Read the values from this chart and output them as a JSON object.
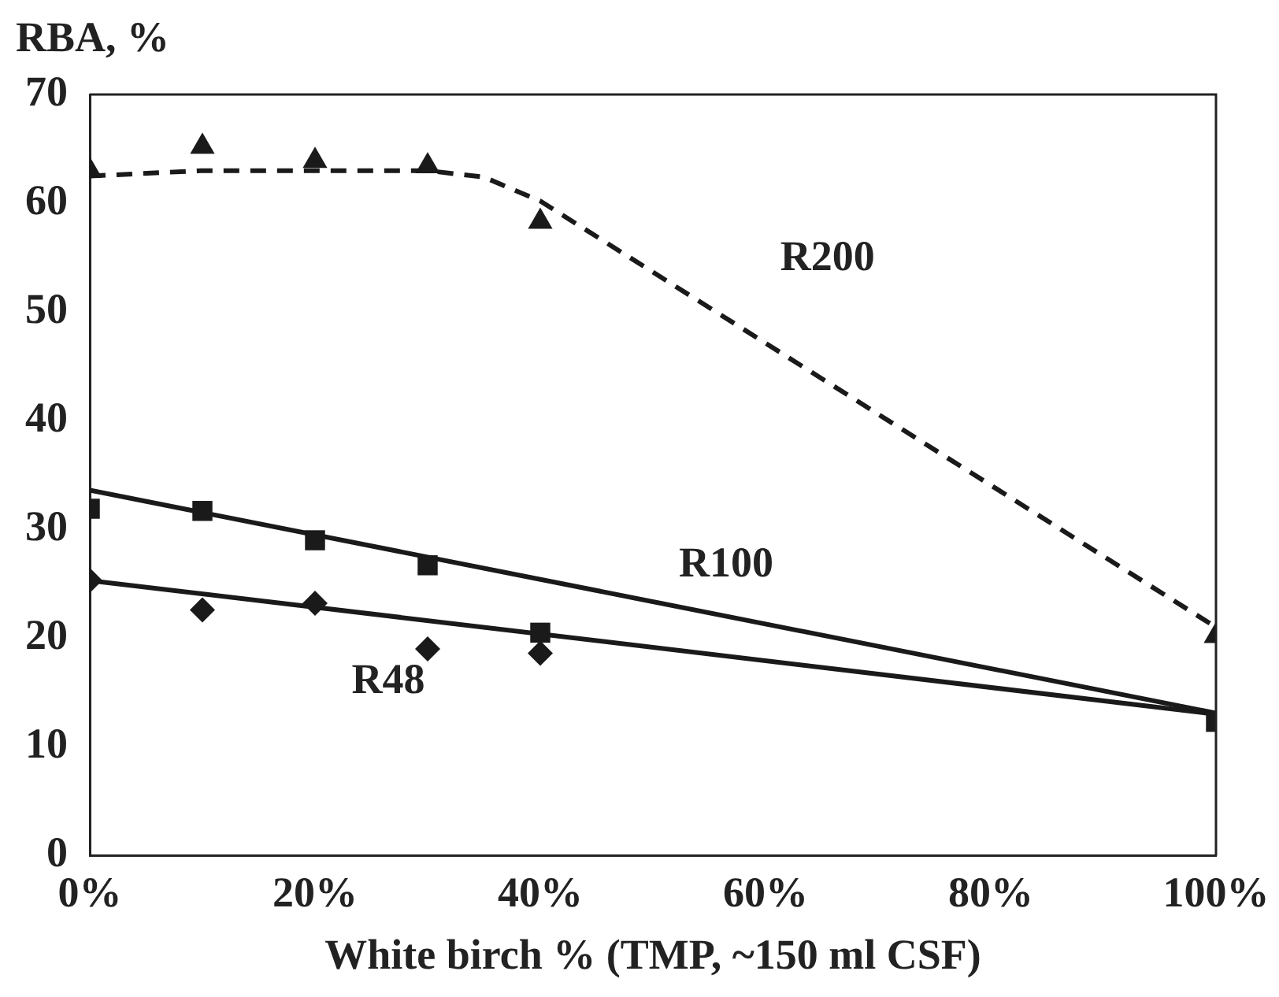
{
  "chart_data": {
    "type": "scatter",
    "xlabel": "White birch % (TMP, ~150 ml CSF)",
    "ylabel": "RBA, %",
    "xlim": [
      0,
      100
    ],
    "xticks": [
      {
        "value": 0,
        "label": "0%"
      },
      {
        "value": 20,
        "label": "20%"
      },
      {
        "value": 40,
        "label": "40%"
      },
      {
        "value": 60,
        "label": "60%"
      },
      {
        "value": 80,
        "label": "80%"
      },
      {
        "value": 100,
        "label": "100%"
      }
    ],
    "ylim": [
      0,
      70
    ],
    "yticks": [
      0,
      10,
      20,
      30,
      40,
      50,
      60,
      70
    ],
    "grid": false,
    "legend": false,
    "series": [
      {
        "color": "#1a1a1a",
        "marker": "triangle",
        "x": [
          0,
          10,
          20,
          30,
          40,
          100
        ],
        "values": [
          63,
          65.2,
          63.9,
          63.4,
          58.3,
          20.2
        ]
      },
      {
        "color": "#1a1a1a",
        "marker": "square",
        "x": [
          0,
          10,
          20,
          30,
          40,
          100
        ],
        "values": [
          31.9,
          31.7,
          29,
          26.7,
          20.5,
          12.3
        ]
      },
      {
        "color": "#1a1a1a",
        "marker": "diamond",
        "x": [
          0,
          10,
          20,
          30,
          40
        ],
        "values": [
          25.3,
          22.6,
          23.2,
          19,
          18.6
        ]
      },
      {
        "type": "line",
        "name": "R200",
        "color": "#1a1a1a",
        "marker": "none",
        "line_style": "dashed",
        "x": [
          0,
          10,
          30,
          35,
          40,
          100
        ],
        "values": [
          62.5,
          63,
          63,
          62.4,
          60.2,
          21
        ]
      },
      {
        "type": "line",
        "color": "#1a1a1a",
        "marker": "none",
        "line_style": "solid",
        "x": [
          0,
          100
        ],
        "values": [
          33.6,
          13.1
        ],
        "name": "R100"
      },
      {
        "type": "line",
        "color": "#1a1a1a",
        "marker": "none",
        "line_style": "solid",
        "x": [
          0,
          100
        ],
        "values": [
          25.3,
          13
        ],
        "name": "R48"
      }
    ]
  }
}
